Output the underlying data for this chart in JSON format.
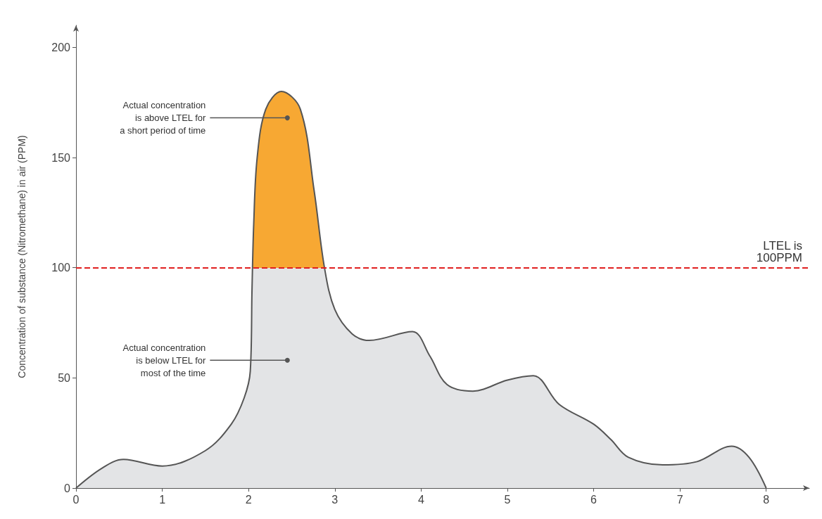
{
  "chart_data": {
    "type": "area",
    "ylabel": "Concentration of substance (Nitromethane) in air (PPM)",
    "x": [
      0,
      0.3,
      0.55,
      1.0,
      1.5,
      1.8,
      1.95,
      2.02,
      2.04,
      2.06,
      2.1,
      2.2,
      2.38,
      2.6,
      2.76,
      2.88,
      3.0,
      3.2,
      3.4,
      3.9,
      4.1,
      4.3,
      4.6,
      5.0,
      5.3,
      5.6,
      6.0,
      6.2,
      6.4,
      6.8,
      7.2,
      7.6,
      7.8,
      8.0
    ],
    "series": [
      {
        "color": "#e3e4e6",
        "values": [
          0,
          9,
          13,
          10,
          17,
          29,
          41,
          53,
          90,
          120,
          150,
          172,
          180,
          172,
          135,
          100,
          81,
          70,
          67,
          71,
          60,
          47,
          44,
          49,
          51,
          38,
          29,
          22,
          14,
          10.5,
          12,
          19,
          14,
          0
        ]
      }
    ],
    "xlim": [
      0,
      8.5
    ],
    "xticks": [
      0,
      1,
      2,
      3,
      4,
      5,
      6,
      7,
      8
    ],
    "ylim": [
      0,
      210
    ],
    "yticks": [
      0,
      50,
      100,
      150,
      200
    ],
    "grid": false,
    "ref_lines": [
      {
        "axis": "y",
        "value": 100,
        "label": "LTEL is\n100PPM",
        "color": "#e02020",
        "line_style": "dashed"
      }
    ],
    "annotations": [
      {
        "text": "Actual concentration\nis above LTEL for\na short period of time",
        "x": 2.45,
        "y": 168
      },
      {
        "text": "Actual concentration\nis below LTEL for\nmost of the time",
        "x": 2.45,
        "y": 58
      }
    ]
  }
}
